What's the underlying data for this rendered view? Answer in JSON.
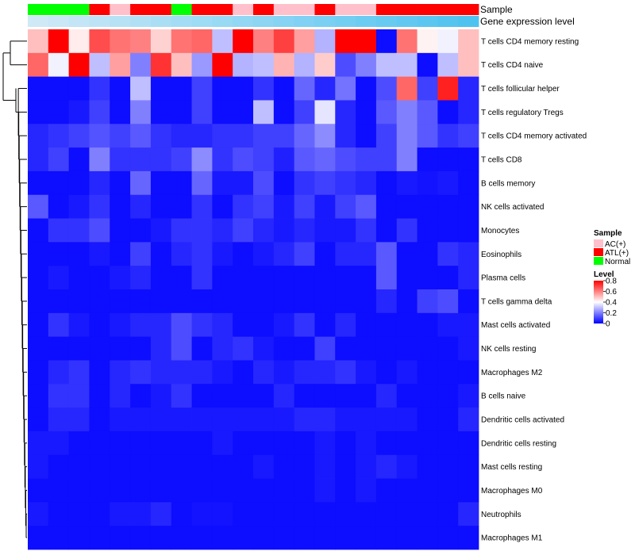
{
  "chart_data": {
    "type": "heatmap",
    "annotation_labels": {
      "sample": "Sample",
      "level": "Gene expression level"
    },
    "sample_groups": [
      "Normal",
      "Normal",
      "Normal",
      "ATL(+)",
      "AC(+)",
      "ATL(+)",
      "ATL(+)",
      "Normal",
      "ATL(+)",
      "ATL(+)",
      "AC(+)",
      "ATL(+)",
      "AC(+)",
      "AC(+)",
      "ATL(+)",
      "AC(+)",
      "AC(+)",
      "ATL(+)",
      "ATL(+)",
      "ATL(+)",
      "ATL(+)",
      "ATL(+)"
    ],
    "gene_expression_level": [
      0.02,
      0.04,
      0.06,
      0.08,
      0.1,
      0.12,
      0.14,
      0.16,
      0.18,
      0.2,
      0.22,
      0.24,
      0.26,
      0.28,
      0.3,
      0.32,
      0.34,
      0.36,
      0.38,
      0.4,
      0.42,
      0.44
    ],
    "rows": [
      "T cells CD4 memory resting",
      "T cells CD4 naive",
      "T cells follicular helper",
      "T cells regulatory  Tregs",
      "T cells CD4 memory activated",
      "T cells CD8",
      "B cells memory",
      "NK cells activated",
      "Monocytes",
      "Eosinophils",
      "Plasma cells",
      "T cells gamma delta",
      "Mast cells activated",
      "NK cells resting",
      "Macrophages M2",
      "B cells naive",
      "Dendritic cells activated",
      "Dendritic cells resting",
      "Mast cells resting",
      "Macrophages M0",
      "Neutrophils",
      "Macrophages M1"
    ],
    "values": [
      [
        0.5,
        0.8,
        0.43,
        0.68,
        0.62,
        0.6,
        0.47,
        0.62,
        0.64,
        0.3,
        0.8,
        0.6,
        0.7,
        0.55,
        0.28,
        0.8,
        0.8,
        0.02,
        0.62,
        0.42,
        0.38,
        0.5
      ],
      [
        0.64,
        0.38,
        0.8,
        0.3,
        0.55,
        0.2,
        0.72,
        0.5,
        0.24,
        0.8,
        0.28,
        0.3,
        0.52,
        0.28,
        0.48,
        0.12,
        0.2,
        0.3,
        0.3,
        0.02,
        0.3,
        0.5
      ],
      [
        0.02,
        0.02,
        0.02,
        0.08,
        0.02,
        0.3,
        0.02,
        0.02,
        0.1,
        0.02,
        0.02,
        0.08,
        0.02,
        0.16,
        0.06,
        0.18,
        0.02,
        0.12,
        0.64,
        0.1,
        0.75,
        0.06
      ],
      [
        0.02,
        0.02,
        0.04,
        0.1,
        0.02,
        0.2,
        0.02,
        0.02,
        0.1,
        0.02,
        0.02,
        0.3,
        0.02,
        0.1,
        0.36,
        0.06,
        0.02,
        0.14,
        0.2,
        0.14,
        0.02,
        0.06
      ],
      [
        0.06,
        0.08,
        0.1,
        0.13,
        0.1,
        0.14,
        0.08,
        0.06,
        0.06,
        0.08,
        0.08,
        0.1,
        0.1,
        0.16,
        0.22,
        0.06,
        0.02,
        0.1,
        0.2,
        0.14,
        0.08,
        0.1
      ],
      [
        0.06,
        0.1,
        0.02,
        0.2,
        0.08,
        0.08,
        0.08,
        0.1,
        0.22,
        0.08,
        0.12,
        0.1,
        0.05,
        0.14,
        0.16,
        0.12,
        0.1,
        0.1,
        0.2,
        0.02,
        0.02,
        0.02
      ],
      [
        0.02,
        0.02,
        0.02,
        0.06,
        0.02,
        0.16,
        0.02,
        0.02,
        0.16,
        0.04,
        0.04,
        0.12,
        0.02,
        0.08,
        0.1,
        0.08,
        0.06,
        0.02,
        0.04,
        0.03,
        0.04,
        0.02
      ],
      [
        0.14,
        0.02,
        0.04,
        0.08,
        0.02,
        0.06,
        0.02,
        0.02,
        0.08,
        0.02,
        0.08,
        0.1,
        0.04,
        0.1,
        0.04,
        0.1,
        0.14,
        0.02,
        0.02,
        0.02,
        0.02,
        0.02
      ],
      [
        0.02,
        0.08,
        0.08,
        0.12,
        0.02,
        0.02,
        0.04,
        0.08,
        0.08,
        0.06,
        0.1,
        0.06,
        0.04,
        0.06,
        0.04,
        0.04,
        0.08,
        0.02,
        0.08,
        0.02,
        0.02,
        0.02
      ],
      [
        0.02,
        0.02,
        0.02,
        0.04,
        0.02,
        0.1,
        0.02,
        0.06,
        0.08,
        0.04,
        0.02,
        0.04,
        0.06,
        0.1,
        0.02,
        0.06,
        0.06,
        0.14,
        0.02,
        0.02,
        0.08,
        0.06
      ],
      [
        0.02,
        0.04,
        0.02,
        0.02,
        0.04,
        0.06,
        0.02,
        0.02,
        0.08,
        0.02,
        0.02,
        0.02,
        0.02,
        0.02,
        0.02,
        0.02,
        0.02,
        0.14,
        0.02,
        0.02,
        0.02,
        0.06
      ],
      [
        0.02,
        0.02,
        0.02,
        0.02,
        0.02,
        0.02,
        0.02,
        0.02,
        0.02,
        0.02,
        0.02,
        0.02,
        0.02,
        0.02,
        0.02,
        0.02,
        0.02,
        0.06,
        0.02,
        0.1,
        0.12,
        0.02
      ],
      [
        0.02,
        0.08,
        0.04,
        0.02,
        0.04,
        0.06,
        0.06,
        0.12,
        0.08,
        0.06,
        0.02,
        0.02,
        0.04,
        0.08,
        0.02,
        0.06,
        0.02,
        0.02,
        0.02,
        0.02,
        0.04,
        0.04
      ],
      [
        0.02,
        0.02,
        0.02,
        0.02,
        0.02,
        0.02,
        0.06,
        0.12,
        0.02,
        0.06,
        0.08,
        0.04,
        0.02,
        0.02,
        0.1,
        0.02,
        0.02,
        0.02,
        0.02,
        0.02,
        0.02,
        0.04
      ],
      [
        0.02,
        0.06,
        0.08,
        0.02,
        0.06,
        0.08,
        0.06,
        0.06,
        0.06,
        0.04,
        0.02,
        0.06,
        0.04,
        0.06,
        0.06,
        0.08,
        0.04,
        0.02,
        0.04,
        0.02,
        0.02,
        0.02
      ],
      [
        0.02,
        0.08,
        0.08,
        0.02,
        0.06,
        0.02,
        0.04,
        0.08,
        0.02,
        0.02,
        0.02,
        0.02,
        0.06,
        0.02,
        0.02,
        0.02,
        0.02,
        0.06,
        0.02,
        0.02,
        0.02,
        0.04
      ],
      [
        0.02,
        0.06,
        0.06,
        0.02,
        0.04,
        0.04,
        0.04,
        0.04,
        0.04,
        0.04,
        0.04,
        0.04,
        0.04,
        0.06,
        0.06,
        0.04,
        0.04,
        0.04,
        0.04,
        0.02,
        0.02,
        0.06
      ],
      [
        0.04,
        0.04,
        0.02,
        0.02,
        0.02,
        0.02,
        0.02,
        0.02,
        0.02,
        0.04,
        0.02,
        0.02,
        0.02,
        0.02,
        0.04,
        0.02,
        0.04,
        0.02,
        0.02,
        0.02,
        0.02,
        0.02
      ],
      [
        0.04,
        0.02,
        0.02,
        0.02,
        0.02,
        0.02,
        0.02,
        0.02,
        0.02,
        0.02,
        0.02,
        0.04,
        0.02,
        0.02,
        0.04,
        0.02,
        0.04,
        0.06,
        0.04,
        0.02,
        0.02,
        0.02
      ],
      [
        0.02,
        0.02,
        0.02,
        0.02,
        0.02,
        0.02,
        0.02,
        0.02,
        0.02,
        0.02,
        0.02,
        0.02,
        0.02,
        0.02,
        0.04,
        0.02,
        0.04,
        0.02,
        0.02,
        0.02,
        0.02,
        0.02
      ],
      [
        0.04,
        0.02,
        0.02,
        0.02,
        0.04,
        0.04,
        0.06,
        0.02,
        0.03,
        0.03,
        0.02,
        0.02,
        0.02,
        0.02,
        0.02,
        0.02,
        0.02,
        0.02,
        0.02,
        0.02,
        0.02,
        0.06
      ],
      [
        0.02,
        0.02,
        0.02,
        0.02,
        0.02,
        0.02,
        0.02,
        0.02,
        0.02,
        0.02,
        0.02,
        0.02,
        0.02,
        0.02,
        0.02,
        0.02,
        0.02,
        0.02,
        0.02,
        0.02,
        0.02,
        0.02
      ]
    ],
    "scale": {
      "min": 0,
      "mid": 0.4,
      "max": 0.8,
      "low_color": "#0000ff",
      "mid_color": "#ffffff",
      "high_color": "#ff0000"
    },
    "level_bar": {
      "low_color": "#cfe9f7",
      "high_color": "#4fc3f0"
    },
    "legend": {
      "sample_title": "Sample",
      "sample_entries": [
        {
          "label": "AC(+)",
          "color": "#ffc0cb"
        },
        {
          "label": "ATL(+)",
          "color": "#ff0000"
        },
        {
          "label": "Normal",
          "color": "#00ff00"
        }
      ],
      "level_title": "Level",
      "level_ticks": [
        "0.8",
        "0.6",
        "0.4",
        "0.2",
        "0"
      ],
      "level_tick_values": [
        0.8,
        0.6,
        0.4,
        0.2,
        0
      ]
    }
  }
}
